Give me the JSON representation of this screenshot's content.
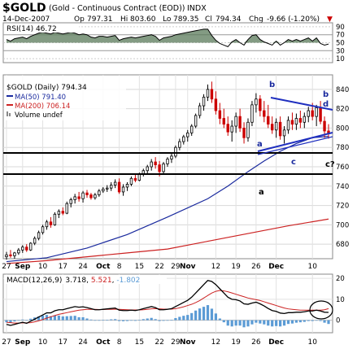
{
  "header": {
    "symbol": "$GOLD",
    "description": "(Gold - Continuous Contract (EOD))",
    "exchange": "INDX",
    "date": "14-Dec-2007",
    "open_label": "Op",
    "open": "797.31",
    "high_label": "Hi",
    "high": "803.60",
    "low_label": "Lo",
    "low": "789.35",
    "close_label": "Cl",
    "close": "794.34",
    "change_label": "Chg",
    "change": "-9.66 (-1.20%)",
    "change_arrow": "▼"
  },
  "colors": {
    "up": "#000000",
    "down": "#cc0000",
    "ma50": "#1a2a9e",
    "ma200": "#cc2222",
    "trendline": "#1f2fbf",
    "macd_hist": "#5b9bd5",
    "macd_signal": "#cc2222",
    "rsi_fill": "#5a7a5a",
    "annotation": "#1a2a9e"
  },
  "rsi_panel": {
    "label": "RSI(14) 46.72",
    "ticks": [
      "90",
      "70",
      "50",
      "30",
      "10"
    ]
  },
  "price_panel": {
    "title": "$GOLD (Daily) 794.34",
    "legend": [
      {
        "key": "ma50",
        "text": "MA(50) 791.40"
      },
      {
        "key": "ma200",
        "text": "MA(200) 706.14"
      },
      {
        "key": "volume",
        "text": "Volume undef"
      }
    ],
    "ticks": [
      "840",
      "820",
      "800",
      "780",
      "760",
      "740",
      "720",
      "700",
      "680"
    ],
    "annotations": {
      "b_high": "b",
      "b_right": "b",
      "d_right": "d",
      "a_wedge": "a",
      "c_wedge": "c",
      "c2_right": "c?",
      "a_lower": "a"
    }
  },
  "x_axis": {
    "labels": [
      "27",
      "Sep",
      "10",
      "17",
      "24",
      "Oct",
      "8",
      "15",
      "22",
      "29",
      "Nov",
      "12",
      "19",
      "26",
      "Dec",
      "10"
    ]
  },
  "macd_panel": {
    "label_prefix": "MACD(12,26,9)",
    "macd": "3.718",
    "signal": "5.521",
    "hist": "-1.802",
    "ticks": [
      "20",
      "10",
      "0"
    ]
  },
  "chart_data": {
    "type": "candlestick",
    "title": "$GOLD (Daily) 794.34",
    "ylim": [
      665,
      855
    ],
    "candles": [
      {
        "o": 667,
        "h": 672,
        "l": 664,
        "c": 669
      },
      {
        "o": 669,
        "h": 674,
        "l": 666,
        "c": 668
      },
      {
        "o": 668,
        "h": 672,
        "l": 665,
        "c": 671
      },
      {
        "o": 671,
        "h": 676,
        "l": 669,
        "c": 674
      },
      {
        "o": 674,
        "h": 679,
        "l": 671,
        "c": 677
      },
      {
        "o": 677,
        "h": 680,
        "l": 672,
        "c": 674
      },
      {
        "o": 674,
        "h": 682,
        "l": 673,
        "c": 681
      },
      {
        "o": 681,
        "h": 688,
        "l": 679,
        "c": 686
      },
      {
        "o": 686,
        "h": 694,
        "l": 684,
        "c": 692
      },
      {
        "o": 692,
        "h": 700,
        "l": 690,
        "c": 698
      },
      {
        "o": 698,
        "h": 705,
        "l": 695,
        "c": 703
      },
      {
        "o": 703,
        "h": 708,
        "l": 697,
        "c": 700
      },
      {
        "o": 700,
        "h": 713,
        "l": 699,
        "c": 711
      },
      {
        "o": 711,
        "h": 716,
        "l": 707,
        "c": 714
      },
      {
        "o": 714,
        "h": 718,
        "l": 710,
        "c": 712
      },
      {
        "o": 712,
        "h": 724,
        "l": 711,
        "c": 722
      },
      {
        "o": 722,
        "h": 728,
        "l": 718,
        "c": 726
      },
      {
        "o": 726,
        "h": 732,
        "l": 722,
        "c": 729
      },
      {
        "o": 729,
        "h": 734,
        "l": 724,
        "c": 727
      },
      {
        "o": 727,
        "h": 735,
        "l": 723,
        "c": 733
      },
      {
        "o": 733,
        "h": 736,
        "l": 728,
        "c": 731
      },
      {
        "o": 731,
        "h": 733,
        "l": 726,
        "c": 728
      },
      {
        "o": 728,
        "h": 733,
        "l": 726,
        "c": 731
      },
      {
        "o": 731,
        "h": 737,
        "l": 729,
        "c": 735
      },
      {
        "o": 735,
        "h": 739,
        "l": 733,
        "c": 737
      },
      {
        "o": 737,
        "h": 741,
        "l": 734,
        "c": 738
      },
      {
        "o": 738,
        "h": 744,
        "l": 735,
        "c": 741
      },
      {
        "o": 741,
        "h": 747,
        "l": 738,
        "c": 744
      },
      {
        "o": 744,
        "h": 748,
        "l": 732,
        "c": 734
      },
      {
        "o": 734,
        "h": 742,
        "l": 730,
        "c": 739
      },
      {
        "o": 739,
        "h": 744,
        "l": 735,
        "c": 742
      },
      {
        "o": 742,
        "h": 750,
        "l": 740,
        "c": 748
      },
      {
        "o": 748,
        "h": 752,
        "l": 744,
        "c": 746
      },
      {
        "o": 746,
        "h": 754,
        "l": 745,
        "c": 752
      },
      {
        "o": 752,
        "h": 758,
        "l": 750,
        "c": 756
      },
      {
        "o": 756,
        "h": 762,
        "l": 753,
        "c": 760
      },
      {
        "o": 760,
        "h": 768,
        "l": 756,
        "c": 765
      },
      {
        "o": 765,
        "h": 770,
        "l": 758,
        "c": 762
      },
      {
        "o": 762,
        "h": 766,
        "l": 750,
        "c": 755
      },
      {
        "o": 755,
        "h": 765,
        "l": 752,
        "c": 763
      },
      {
        "o": 763,
        "h": 770,
        "l": 760,
        "c": 768
      },
      {
        "o": 768,
        "h": 774,
        "l": 764,
        "c": 771
      },
      {
        "o": 771,
        "h": 782,
        "l": 769,
        "c": 780
      },
      {
        "o": 780,
        "h": 789,
        "l": 777,
        "c": 786
      },
      {
        "o": 786,
        "h": 793,
        "l": 783,
        "c": 791
      },
      {
        "o": 791,
        "h": 798,
        "l": 786,
        "c": 795
      },
      {
        "o": 795,
        "h": 804,
        "l": 792,
        "c": 802
      },
      {
        "o": 802,
        "h": 815,
        "l": 800,
        "c": 813
      },
      {
        "o": 813,
        "h": 826,
        "l": 810,
        "c": 823
      },
      {
        "o": 823,
        "h": 835,
        "l": 818,
        "c": 832
      },
      {
        "o": 832,
        "h": 845,
        "l": 828,
        "c": 840
      },
      {
        "o": 840,
        "h": 848,
        "l": 826,
        "c": 830
      },
      {
        "o": 830,
        "h": 838,
        "l": 814,
        "c": 818
      },
      {
        "o": 818,
        "h": 826,
        "l": 804,
        "c": 810
      },
      {
        "o": 810,
        "h": 820,
        "l": 800,
        "c": 804
      },
      {
        "o": 804,
        "h": 812,
        "l": 792,
        "c": 796
      },
      {
        "o": 796,
        "h": 808,
        "l": 786,
        "c": 802
      },
      {
        "o": 802,
        "h": 816,
        "l": 795,
        "c": 812
      },
      {
        "o": 812,
        "h": 820,
        "l": 796,
        "c": 800
      },
      {
        "o": 800,
        "h": 806,
        "l": 784,
        "c": 790
      },
      {
        "o": 790,
        "h": 810,
        "l": 786,
        "c": 806
      },
      {
        "o": 806,
        "h": 828,
        "l": 802,
        "c": 824
      },
      {
        "o": 824,
        "h": 836,
        "l": 816,
        "c": 830
      },
      {
        "o": 830,
        "h": 834,
        "l": 812,
        "c": 818
      },
      {
        "o": 818,
        "h": 828,
        "l": 806,
        "c": 812
      },
      {
        "o": 812,
        "h": 824,
        "l": 800,
        "c": 804
      },
      {
        "o": 804,
        "h": 812,
        "l": 794,
        "c": 798
      },
      {
        "o": 798,
        "h": 810,
        "l": 790,
        "c": 806
      },
      {
        "o": 806,
        "h": 812,
        "l": 788,
        "c": 792
      },
      {
        "o": 792,
        "h": 802,
        "l": 784,
        "c": 798
      },
      {
        "o": 798,
        "h": 812,
        "l": 794,
        "c": 808
      },
      {
        "o": 808,
        "h": 816,
        "l": 798,
        "c": 804
      },
      {
        "o": 804,
        "h": 815,
        "l": 798,
        "c": 810
      },
      {
        "o": 810,
        "h": 818,
        "l": 800,
        "c": 806
      },
      {
        "o": 806,
        "h": 816,
        "l": 800,
        "c": 812
      },
      {
        "o": 812,
        "h": 822,
        "l": 806,
        "c": 818
      },
      {
        "o": 818,
        "h": 826,
        "l": 808,
        "c": 812
      },
      {
        "o": 812,
        "h": 824,
        "l": 802,
        "c": 821
      },
      {
        "o": 821,
        "h": 828,
        "l": 804,
        "c": 807
      },
      {
        "o": 807,
        "h": 812,
        "l": 790,
        "c": 797
      },
      {
        "o": 797,
        "h": 804,
        "l": 789,
        "c": 794
      }
    ],
    "ma50": [
      [
        0,
        662
      ],
      [
        10,
        666
      ],
      [
        20,
        676
      ],
      [
        30,
        690
      ],
      [
        40,
        708
      ],
      [
        50,
        727
      ],
      [
        55,
        740
      ],
      [
        60,
        755
      ],
      [
        64,
        766
      ],
      [
        68,
        776
      ],
      [
        72,
        784
      ],
      [
        76,
        790
      ],
      [
        80,
        791.4
      ]
    ],
    "ma200": [
      [
        0,
        660
      ],
      [
        10,
        663
      ],
      [
        20,
        667
      ],
      [
        30,
        671
      ],
      [
        40,
        675
      ],
      [
        50,
        683
      ],
      [
        60,
        691
      ],
      [
        70,
        699
      ],
      [
        80,
        706
      ]
    ],
    "rsi": [
      58,
      54,
      60,
      62,
      64,
      60,
      66,
      70,
      74,
      76,
      74,
      72,
      76,
      74,
      72,
      74,
      76,
      74,
      70,
      72,
      70,
      64,
      62,
      66,
      66,
      64,
      66,
      68,
      56,
      60,
      62,
      64,
      62,
      64,
      66,
      68,
      70,
      66,
      56,
      62,
      64,
      66,
      70,
      72,
      74,
      76,
      78,
      80,
      82,
      84,
      84,
      68,
      56,
      48,
      44,
      40,
      52,
      58,
      50,
      44,
      58,
      68,
      70,
      58,
      52,
      48,
      44,
      54,
      44,
      50,
      58,
      54,
      58,
      54,
      58,
      62,
      54,
      62,
      48,
      44,
      46.72
    ],
    "macd": [
      -2,
      -2.5,
      -2,
      -1.5,
      -1,
      -1.5,
      -0.5,
      0.5,
      1.5,
      2.5,
      3.5,
      3.5,
      4.5,
      5,
      5,
      5.5,
      6,
      6.5,
      6.2,
      6.4,
      6,
      5.5,
      5,
      5,
      5.2,
      5.4,
      5.6,
      5.8,
      4.8,
      4.6,
      4.6,
      4.8,
      4.6,
      5,
      5.5,
      6,
      6.5,
      6,
      5,
      5,
      5.2,
      5.5,
      6.5,
      7.5,
      8.5,
      9.5,
      11,
      13,
      15,
      17,
      19,
      18.5,
      17,
      15,
      13,
      11,
      10,
      9.8,
      9.2,
      7.8,
      7.6,
      8.2,
      8.6,
      7.8,
      6.8,
      5.6,
      4.6,
      4.2,
      3.4,
      3.2,
      3.6,
      3.6,
      3.8,
      3.8,
      4,
      4.4,
      4.4,
      4.8,
      4.4,
      3.8,
      3.718
    ],
    "signal": [
      -1,
      -1.2,
      -1.4,
      -1.4,
      -1.3,
      -1.3,
      -1.2,
      -0.8,
      -0.3,
      0.3,
      1,
      1.6,
      2.2,
      2.8,
      3.2,
      3.6,
      4,
      4.4,
      4.8,
      5,
      5.2,
      5.2,
      5.2,
      5.1,
      5.1,
      5.2,
      5.2,
      5.3,
      5.2,
      5.1,
      5,
      4.9,
      4.9,
      4.9,
      5,
      5.2,
      5.4,
      5.5,
      5.4,
      5.3,
      5.3,
      5.3,
      5.5,
      5.9,
      6.4,
      7,
      7.6,
      8.4,
      9.4,
      10.6,
      11.8,
      13,
      13.8,
      14.2,
      14,
      13.6,
      13,
      12.4,
      11.8,
      11.2,
      10.6,
      10.2,
      9.8,
      9.4,
      8.8,
      8.2,
      7.6,
      7,
      6.4,
      5.8,
      5.4,
      5.2,
      5,
      4.8,
      4.8,
      4.8,
      4.8,
      4.8,
      4.8,
      5,
      5.521
    ]
  }
}
